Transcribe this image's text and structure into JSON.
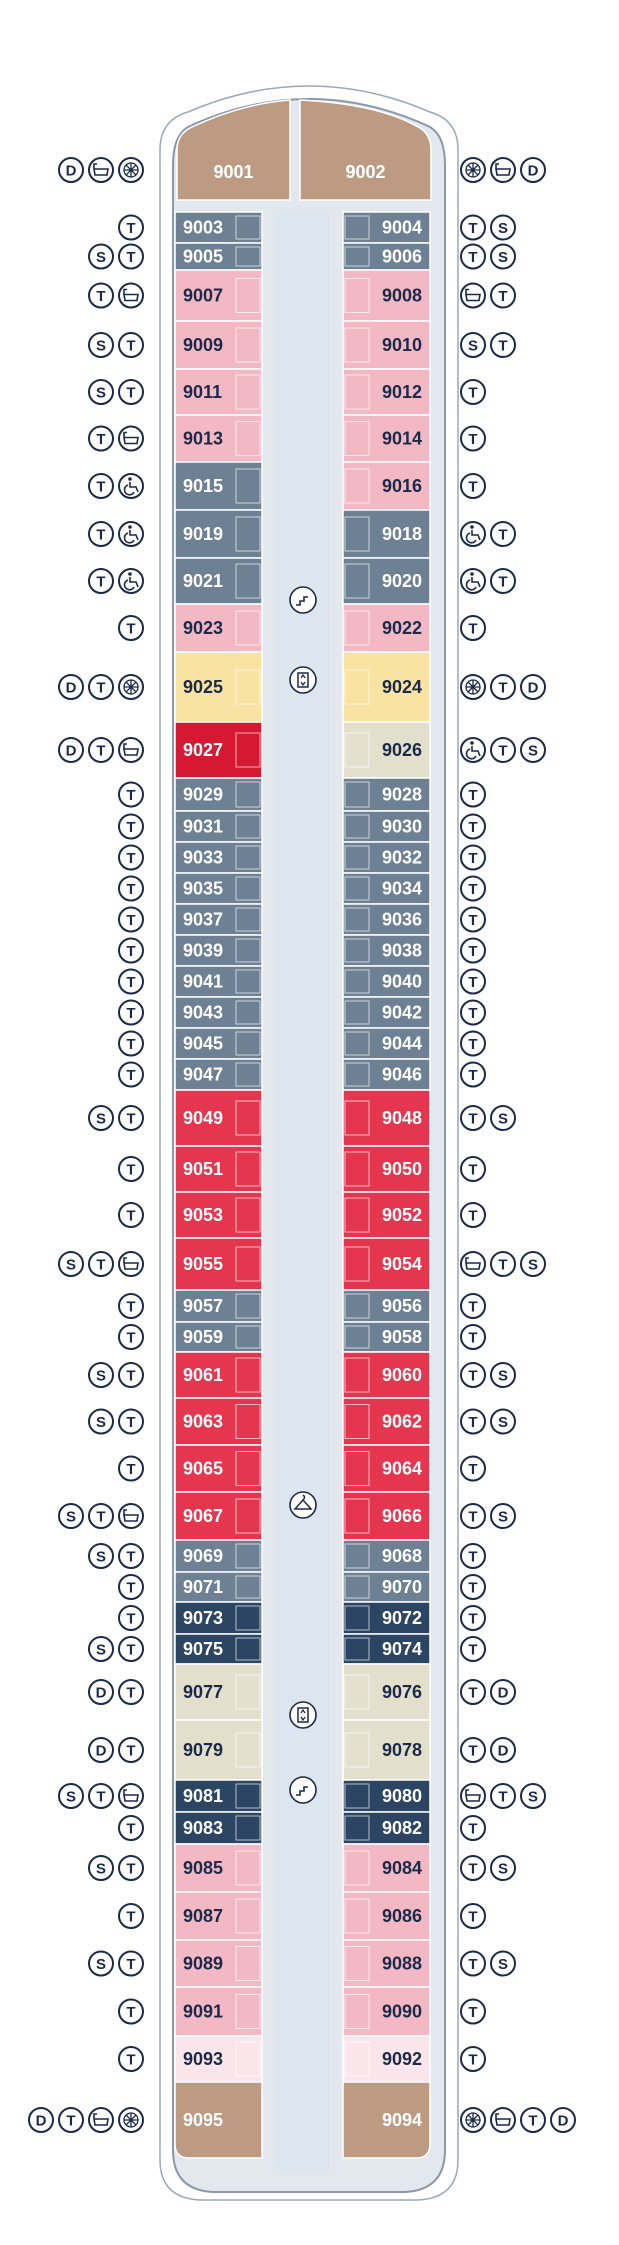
{
  "legend_colors": {
    "hull_fill": "#e3e8ee",
    "hull_stroke": "#8a98aa",
    "corridor": "#dde5ee",
    "icon_navy": "#1b2a4a",
    "dark_navy": "#2b4563",
    "slate": "#6e8194",
    "pink_light": "#f2b9c4",
    "pink_pale": "#fae6ea",
    "red": "#e4374f",
    "red_dark": "#d61932",
    "yellow": "#f9e3a2",
    "beige": "#e3dfcd",
    "tan": "#bc9b82"
  },
  "facilities": [
    "stairs-icon",
    "elevator-icon",
    "hanger-icon",
    "elevator-icon",
    "stairs-icon"
  ],
  "cabins": [
    {
      "side": "L",
      "number": "9001",
      "color": "tan",
      "icons": [
        "D",
        "B",
        "V"
      ]
    },
    {
      "side": "R",
      "number": "9002",
      "color": "tan",
      "icons": [
        "V",
        "B",
        "D"
      ]
    },
    {
      "side": "L",
      "number": "9003",
      "color": "slate",
      "icons": [
        "T"
      ]
    },
    {
      "side": "R",
      "number": "9004",
      "color": "slate",
      "icons": [
        "T",
        "S"
      ]
    },
    {
      "side": "L",
      "number": "9005",
      "color": "slate",
      "icons": [
        "S",
        "T"
      ]
    },
    {
      "side": "R",
      "number": "9006",
      "color": "slate",
      "icons": [
        "T",
        "S"
      ]
    },
    {
      "side": "L",
      "number": "9007",
      "color": "pink_light",
      "icons": [
        "T",
        "B"
      ]
    },
    {
      "side": "R",
      "number": "9008",
      "color": "pink_light",
      "icons": [
        "B",
        "T"
      ]
    },
    {
      "side": "L",
      "number": "9009",
      "color": "pink_light",
      "icons": [
        "S",
        "T"
      ]
    },
    {
      "side": "R",
      "number": "9010",
      "color": "pink_light",
      "icons": [
        "S",
        "T"
      ]
    },
    {
      "side": "L",
      "number": "9011",
      "color": "pink_light",
      "icons": [
        "S",
        "T"
      ]
    },
    {
      "side": "R",
      "number": "9012",
      "color": "pink_light",
      "icons": [
        "T"
      ]
    },
    {
      "side": "L",
      "number": "9013",
      "color": "pink_light",
      "icons": [
        "T",
        "B"
      ]
    },
    {
      "side": "R",
      "number": "9014",
      "color": "pink_light",
      "icons": [
        "T"
      ]
    },
    {
      "side": "L",
      "number": "9015",
      "color": "slate",
      "icons": [
        "T",
        "A"
      ]
    },
    {
      "side": "R",
      "number": "9016",
      "color": "pink_light",
      "icons": [
        "T"
      ]
    },
    {
      "side": "L",
      "number": "9019",
      "color": "slate",
      "icons": [
        "T",
        "A"
      ]
    },
    {
      "side": "R",
      "number": "9018",
      "color": "slate",
      "icons": [
        "A",
        "T"
      ]
    },
    {
      "side": "L",
      "number": "9021",
      "color": "slate",
      "icons": [
        "T",
        "A"
      ]
    },
    {
      "side": "R",
      "number": "9020",
      "color": "slate",
      "icons": [
        "A",
        "T"
      ]
    },
    {
      "side": "L",
      "number": "9023",
      "color": "pink_light",
      "icons": [
        "T"
      ]
    },
    {
      "side": "R",
      "number": "9022",
      "color": "pink_light",
      "icons": [
        "T"
      ]
    },
    {
      "side": "L",
      "number": "9025",
      "color": "yellow",
      "icons": [
        "D",
        "T",
        "V"
      ]
    },
    {
      "side": "R",
      "number": "9024",
      "color": "yellow",
      "icons": [
        "V",
        "T",
        "D"
      ]
    },
    {
      "side": "L",
      "number": "9027",
      "color": "red_dark",
      "icons": [
        "D",
        "T",
        "B"
      ]
    },
    {
      "side": "R",
      "number": "9026",
      "color": "beige",
      "icons": [
        "A",
        "T",
        "S"
      ]
    },
    {
      "side": "L",
      "number": "9029",
      "color": "slate",
      "icons": [
        "T"
      ]
    },
    {
      "side": "R",
      "number": "9028",
      "color": "slate",
      "icons": [
        "T"
      ]
    },
    {
      "side": "L",
      "number": "9031",
      "color": "slate",
      "icons": [
        "T"
      ]
    },
    {
      "side": "R",
      "number": "9030",
      "color": "slate",
      "icons": [
        "T"
      ]
    },
    {
      "side": "L",
      "number": "9033",
      "color": "slate",
      "icons": [
        "T"
      ]
    },
    {
      "side": "R",
      "number": "9032",
      "color": "slate",
      "icons": [
        "T"
      ]
    },
    {
      "side": "L",
      "number": "9035",
      "color": "slate",
      "icons": [
        "T"
      ]
    },
    {
      "side": "R",
      "number": "9034",
      "color": "slate",
      "icons": [
        "T"
      ]
    },
    {
      "side": "L",
      "number": "9037",
      "color": "slate",
      "icons": [
        "T"
      ]
    },
    {
      "side": "R",
      "number": "9036",
      "color": "slate",
      "icons": [
        "T"
      ]
    },
    {
      "side": "L",
      "number": "9039",
      "color": "slate",
      "icons": [
        "T"
      ]
    },
    {
      "side": "R",
      "number": "9038",
      "color": "slate",
      "icons": [
        "T"
      ]
    },
    {
      "side": "L",
      "number": "9041",
      "color": "slate",
      "icons": [
        "T"
      ]
    },
    {
      "side": "R",
      "number": "9040",
      "color": "slate",
      "icons": [
        "T"
      ]
    },
    {
      "side": "L",
      "number": "9043",
      "color": "slate",
      "icons": [
        "T"
      ]
    },
    {
      "side": "R",
      "number": "9042",
      "color": "slate",
      "icons": [
        "T"
      ]
    },
    {
      "side": "L",
      "number": "9045",
      "color": "slate",
      "icons": [
        "T"
      ]
    },
    {
      "side": "R",
      "number": "9044",
      "color": "slate",
      "icons": [
        "T"
      ]
    },
    {
      "side": "L",
      "number": "9047",
      "color": "slate",
      "icons": [
        "T"
      ]
    },
    {
      "side": "R",
      "number": "9046",
      "color": "slate",
      "icons": [
        "T"
      ]
    },
    {
      "side": "L",
      "number": "9049",
      "color": "red",
      "icons": [
        "S",
        "T"
      ]
    },
    {
      "side": "R",
      "number": "9048",
      "color": "red",
      "icons": [
        "T",
        "S"
      ]
    },
    {
      "side": "L",
      "number": "9051",
      "color": "red",
      "icons": [
        "T"
      ]
    },
    {
      "side": "R",
      "number": "9050",
      "color": "red",
      "icons": [
        "T"
      ]
    },
    {
      "side": "L",
      "number": "9053",
      "color": "red",
      "icons": [
        "T"
      ]
    },
    {
      "side": "R",
      "number": "9052",
      "color": "red",
      "icons": [
        "T"
      ]
    },
    {
      "side": "L",
      "number": "9055",
      "color": "red",
      "icons": [
        "S",
        "T",
        "B"
      ]
    },
    {
      "side": "R",
      "number": "9054",
      "color": "red",
      "icons": [
        "B",
        "T",
        "S"
      ]
    },
    {
      "side": "L",
      "number": "9057",
      "color": "slate",
      "icons": [
        "T"
      ]
    },
    {
      "side": "R",
      "number": "9056",
      "color": "slate",
      "icons": [
        "T"
      ]
    },
    {
      "side": "L",
      "number": "9059",
      "color": "slate",
      "icons": [
        "T"
      ]
    },
    {
      "side": "R",
      "number": "9058",
      "color": "slate",
      "icons": [
        "T"
      ]
    },
    {
      "side": "L",
      "number": "9061",
      "color": "red",
      "icons": [
        "S",
        "T"
      ]
    },
    {
      "side": "R",
      "number": "9060",
      "color": "red",
      "icons": [
        "T",
        "S"
      ]
    },
    {
      "side": "L",
      "number": "9063",
      "color": "red",
      "icons": [
        "S",
        "T"
      ]
    },
    {
      "side": "R",
      "number": "9062",
      "color": "red",
      "icons": [
        "T",
        "S"
      ]
    },
    {
      "side": "L",
      "number": "9065",
      "color": "red",
      "icons": [
        "T"
      ]
    },
    {
      "side": "R",
      "number": "9064",
      "color": "red",
      "icons": [
        "T"
      ]
    },
    {
      "side": "L",
      "number": "9067",
      "color": "red",
      "icons": [
        "S",
        "T",
        "B"
      ]
    },
    {
      "side": "R",
      "number": "9066",
      "color": "red",
      "icons": [
        "T",
        "S"
      ]
    },
    {
      "side": "L",
      "number": "9069",
      "color": "slate",
      "icons": [
        "S",
        "T"
      ]
    },
    {
      "side": "R",
      "number": "9068",
      "color": "slate",
      "icons": [
        "T"
      ]
    },
    {
      "side": "L",
      "number": "9071",
      "color": "slate",
      "icons": [
        "T"
      ]
    },
    {
      "side": "R",
      "number": "9070",
      "color": "slate",
      "icons": [
        "T"
      ]
    },
    {
      "side": "L",
      "number": "9073",
      "color": "dark_navy",
      "icons": [
        "T"
      ]
    },
    {
      "side": "R",
      "number": "9072",
      "color": "dark_navy",
      "icons": [
        "T"
      ]
    },
    {
      "side": "L",
      "number": "9075",
      "color": "dark_navy",
      "icons": [
        "S",
        "T"
      ]
    },
    {
      "side": "R",
      "number": "9074",
      "color": "dark_navy",
      "icons": [
        "T"
      ]
    },
    {
      "side": "L",
      "number": "9077",
      "color": "beige",
      "icons": [
        "D",
        "T"
      ]
    },
    {
      "side": "R",
      "number": "9076",
      "color": "beige",
      "icons": [
        "T",
        "D"
      ]
    },
    {
      "side": "L",
      "number": "9079",
      "color": "beige",
      "icons": [
        "D",
        "T"
      ]
    },
    {
      "side": "R",
      "number": "9078",
      "color": "beige",
      "icons": [
        "T",
        "D"
      ]
    },
    {
      "side": "L",
      "number": "9081",
      "color": "dark_navy",
      "icons": [
        "S",
        "T",
        "B"
      ]
    },
    {
      "side": "R",
      "number": "9080",
      "color": "dark_navy",
      "icons": [
        "B",
        "T",
        "S"
      ]
    },
    {
      "side": "L",
      "number": "9083",
      "color": "dark_navy",
      "icons": [
        "T"
      ]
    },
    {
      "side": "R",
      "number": "9082",
      "color": "dark_navy",
      "icons": [
        "T"
      ]
    },
    {
      "side": "L",
      "number": "9085",
      "color": "pink_light",
      "icons": [
        "S",
        "T"
      ]
    },
    {
      "side": "R",
      "number": "9084",
      "color": "pink_light",
      "icons": [
        "T",
        "S"
      ]
    },
    {
      "side": "L",
      "number": "9087",
      "color": "pink_light",
      "icons": [
        "T"
      ]
    },
    {
      "side": "R",
      "number": "9086",
      "color": "pink_light",
      "icons": [
        "T"
      ]
    },
    {
      "side": "L",
      "number": "9089",
      "color": "pink_light",
      "icons": [
        "S",
        "T"
      ]
    },
    {
      "side": "R",
      "number": "9088",
      "color": "pink_light",
      "icons": [
        "T",
        "S"
      ]
    },
    {
      "side": "L",
      "number": "9091",
      "color": "pink_light",
      "icons": [
        "T"
      ]
    },
    {
      "side": "R",
      "number": "9090",
      "color": "pink_light",
      "icons": [
        "T"
      ]
    },
    {
      "side": "L",
      "number": "9093",
      "color": "pink_pale",
      "icons": [
        "T"
      ]
    },
    {
      "side": "R",
      "number": "9092",
      "color": "pink_pale",
      "icons": [
        "T"
      ]
    },
    {
      "side": "L",
      "number": "9095",
      "color": "tan",
      "icons": [
        "D",
        "T",
        "B",
        "V"
      ]
    },
    {
      "side": "R",
      "number": "9094",
      "color": "tan",
      "icons": [
        "V",
        "B",
        "T",
        "D"
      ]
    }
  ],
  "icon_letters": {
    "T": "T",
    "S": "S",
    "D": "D"
  }
}
